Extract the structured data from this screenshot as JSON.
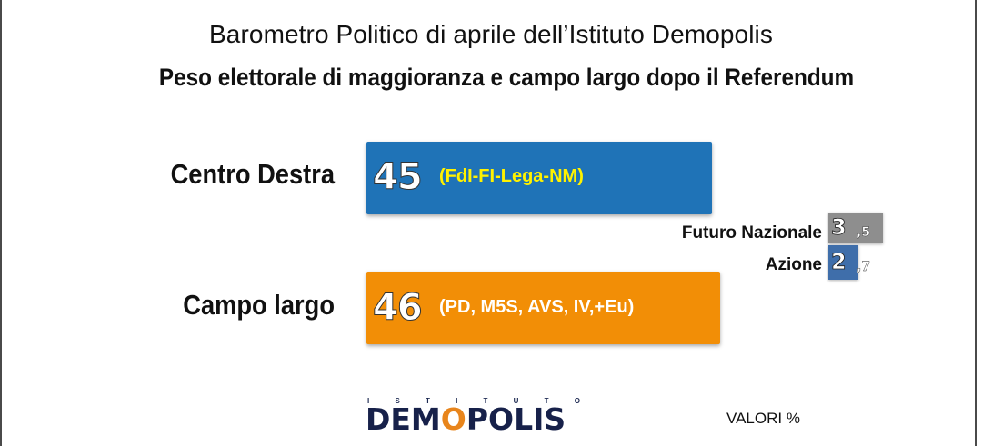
{
  "subtitle": "Barometro Politico di aprile dell’Istituto Demopolis",
  "title": "Peso elettorale di maggioranza e campo largo dopo il Referendum",
  "chart_data": {
    "type": "bar",
    "orientation": "horizontal",
    "series": [
      {
        "category": "Centro Destra",
        "value": 45,
        "value_label": "45",
        "detail": "(FdI-FI-Lega-NM)",
        "color": "#1f73b7",
        "detail_color": "#fff200"
      },
      {
        "category": "Campo largo",
        "value": 46,
        "value_label": "46",
        "detail": "(PD, M5S, AVS, IV,+Eu)",
        "color": "#f28e06",
        "detail_color": "#ffffff"
      }
    ],
    "others": [
      {
        "name": "Futuro Nazionale",
        "value": 3.5,
        "int_label": "3",
        "dec_label": ",5",
        "color": "#8e8e8e"
      },
      {
        "name": "Azione",
        "value": 2.7,
        "int_label": "2",
        "dec_label": ",7",
        "color": "#3f6eaa"
      }
    ],
    "note": "VALORI %"
  },
  "logo": {
    "top_letters": [
      "I",
      "S",
      "T",
      "I",
      "T",
      "U",
      "T",
      "O"
    ],
    "part1": "DEM",
    "accent": "O",
    "part2": "POLIS"
  }
}
